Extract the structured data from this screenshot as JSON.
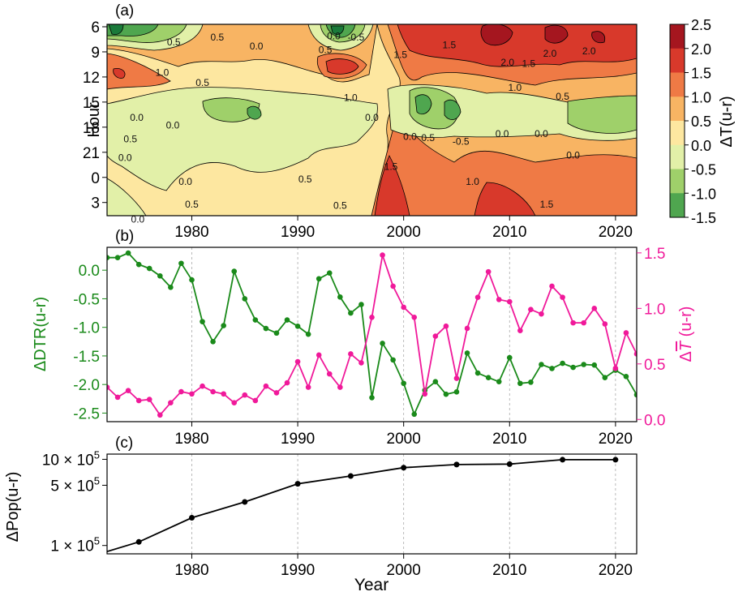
{
  "figure": {
    "panel_a_label": "(a)",
    "panel_b_label": "(b)",
    "panel_c_label": "(c)"
  },
  "chart_data": [
    {
      "type": "heatmap",
      "panel": "(a)",
      "ylabel": "Hour",
      "xlabel": "",
      "x_ticks": [
        "1980",
        "1990",
        "2000",
        "2010",
        "2020"
      ],
      "x_tick_values": [
        1980,
        1990,
        2000,
        2010,
        2020
      ],
      "xlim": [
        1972,
        2022
      ],
      "y_ticks": [
        "6",
        "9",
        "12",
        "15",
        "18",
        "21",
        "0",
        "3"
      ],
      "colorbar_label": "ΔT(u-r)",
      "colorbar_ticks": [
        "2.5",
        "2.0",
        "1.5",
        "1.0",
        "0.5",
        "0.0",
        "-0.5",
        "-1.0",
        "-1.5"
      ],
      "levels": [
        -1.5,
        -1.0,
        -0.5,
        0.0,
        0.5,
        1.0,
        1.5,
        2.0,
        2.5
      ],
      "level_colors": [
        "#1a7a3a",
        "#4fa64f",
        "#9fd06a",
        "#e2f0a8",
        "#fde7a0",
        "#f8b463",
        "#ef7a45",
        "#d8392b",
        "#a5161f"
      ],
      "contour_labels": [
        {
          "text": "0.5",
          "year": 1978.3,
          "hour_index": 0.75
        },
        {
          "text": "0.5",
          "year": 1982.4,
          "hour_index": 0.55
        },
        {
          "text": "0.0",
          "year": 1986.1,
          "hour_index": 0.9
        },
        {
          "text": "0.5",
          "year": 1992.6,
          "hour_index": 1.05
        },
        {
          "text": "0.0",
          "year": 1993.4,
          "hour_index": 0.5
        },
        {
          "text": "-0.5",
          "year": 1995.5,
          "hour_index": 0.55
        },
        {
          "text": "1.0",
          "year": 1977.2,
          "hour_index": 1.95
        },
        {
          "text": "0.5",
          "year": 1981.0,
          "hour_index": 2.35
        },
        {
          "text": "1.0",
          "year": 1995.0,
          "hour_index": 2.95
        },
        {
          "text": "1.5",
          "year": 1999.7,
          "hour_index": 1.25
        },
        {
          "text": "1.5",
          "year": 2004.3,
          "hour_index": 0.85
        },
        {
          "text": "2.0",
          "year": 2009.8,
          "hour_index": 1.55
        },
        {
          "text": "1.5",
          "year": 2011.8,
          "hour_index": 1.6
        },
        {
          "text": "2.0",
          "year": 2013.8,
          "hour_index": 1.2
        },
        {
          "text": "2.0",
          "year": 2017.5,
          "hour_index": 1.1
        },
        {
          "text": "1.0",
          "year": 2010.5,
          "hour_index": 2.55
        },
        {
          "text": "0.5",
          "year": 2015.0,
          "hour_index": 2.9
        },
        {
          "text": "0.0",
          "year": 1974.8,
          "hour_index": 3.75
        },
        {
          "text": "0.0",
          "year": 1978.2,
          "hour_index": 4.05
        },
        {
          "text": "0.0",
          "year": 1997.0,
          "hour_index": 3.75
        },
        {
          "text": "0.0",
          "year": 2000.6,
          "hour_index": 4.5
        },
        {
          "text": "0.5",
          "year": 2002.3,
          "hour_index": 4.55
        },
        {
          "text": "-0.5",
          "year": 2005.4,
          "hour_index": 4.7
        },
        {
          "text": "0.0",
          "year": 2009.3,
          "hour_index": 4.4
        },
        {
          "text": "0.0",
          "year": 2013.0,
          "hour_index": 4.4
        },
        {
          "text": "0.0",
          "year": 2016.0,
          "hour_index": 5.25
        },
        {
          "text": "0.5",
          "year": 1974.2,
          "hour_index": 4.6
        },
        {
          "text": "0.0",
          "year": 1973.7,
          "hour_index": 5.35
        },
        {
          "text": "0.0",
          "year": 1979.4,
          "hour_index": 6.3
        },
        {
          "text": "0.5",
          "year": 1990.7,
          "hour_index": 6.2
        },
        {
          "text": "1.5",
          "year": 1998.8,
          "hour_index": 5.7
        },
        {
          "text": "1.0",
          "year": 2006.5,
          "hour_index": 6.3
        },
        {
          "text": "1.5",
          "year": 2013.5,
          "hour_index": 7.2
        },
        {
          "text": "0.5",
          "year": 1980.0,
          "hour_index": 7.2
        },
        {
          "text": "0.5",
          "year": 1994.0,
          "hour_index": 7.25
        },
        {
          "text": "0.0",
          "year": 1974.9,
          "hour_index": 7.8
        }
      ]
    },
    {
      "type": "line",
      "panel": "(b)",
      "xlim": [
        1972,
        2022
      ],
      "x_ticks": [
        "1980",
        "1990",
        "2000",
        "2010",
        "2020"
      ],
      "x_tick_values": [
        1980,
        1990,
        2000,
        2010,
        2020
      ],
      "ylabel_left": "ΔDTR(u-r)",
      "ylabel_right_prefix": "Δ",
      "ylabel_right_symbol": "T",
      "ylabel_right_suffix": " (u-r)",
      "ylim_left": [
        -2.65,
        0.4
      ],
      "ylim_right": [
        -0.02,
        1.55
      ],
      "yticks_left": [
        "0.0",
        "-0.5",
        "-1.0",
        "-1.5",
        "-2.0",
        "-2.5"
      ],
      "yticks_left_values": [
        0,
        -0.5,
        -1.0,
        -1.5,
        -2.0,
        -2.5
      ],
      "yticks_right": [
        "1.5",
        "1.0",
        "0.5",
        "0.0"
      ],
      "yticks_right_values": [
        1.5,
        1.0,
        0.5,
        0.0
      ],
      "x": [
        1972,
        1973,
        1974,
        1975,
        1976,
        1977,
        1978,
        1979,
        1980,
        1981,
        1982,
        1983,
        1984,
        1985,
        1986,
        1987,
        1988,
        1989,
        1990,
        1991,
        1992,
        1993,
        1994,
        1995,
        1996,
        1997,
        1998,
        1999,
        2000,
        2001,
        2002,
        2003,
        2004,
        2005,
        2006,
        2007,
        2008,
        2009,
        2010,
        2011,
        2012,
        2013,
        2014,
        2015,
        2016,
        2017,
        2018,
        2019,
        2020,
        2021,
        2022
      ],
      "series": [
        {
          "name": "ΔDTR(u-r)",
          "axis": "left",
          "color": "#1a8a1a",
          "values": [
            0.22,
            0.22,
            0.3,
            0.1,
            0.03,
            -0.1,
            -0.3,
            0.12,
            -0.17,
            -0.9,
            -1.25,
            -0.97,
            -0.02,
            -0.5,
            -0.87,
            -1.02,
            -1.1,
            -0.87,
            -0.98,
            -1.12,
            -0.15,
            -0.05,
            -0.47,
            -0.75,
            -0.6,
            -2.23,
            -1.28,
            -1.57,
            -1.98,
            -2.52,
            -2.1,
            -1.95,
            -2.17,
            -2.13,
            -1.45,
            -1.8,
            -1.88,
            -1.95,
            -1.53,
            -1.98,
            -1.96,
            -1.65,
            -1.72,
            -1.63,
            -1.7,
            -1.65,
            -1.66,
            -1.88,
            -1.75,
            -1.86,
            -2.18
          ]
        },
        {
          "name": "ΔT̄ (u-r)",
          "axis": "right",
          "color": "#f0199a",
          "values": [
            0.29,
            0.2,
            0.26,
            0.17,
            0.18,
            0.04,
            0.15,
            0.25,
            0.23,
            0.3,
            0.25,
            0.23,
            0.15,
            0.22,
            0.17,
            0.3,
            0.24,
            0.33,
            0.52,
            0.29,
            0.58,
            0.41,
            0.29,
            0.59,
            0.51,
            0.92,
            1.48,
            1.2,
            1.01,
            0.92,
            0.23,
            0.75,
            0.84,
            0.37,
            0.82,
            1.1,
            1.33,
            1.08,
            1.06,
            0.8,
            0.99,
            0.95,
            1.2,
            1.1,
            0.87,
            0.87,
            1.0,
            0.86,
            0.46,
            0.78,
            0.59
          ]
        }
      ]
    },
    {
      "type": "line",
      "panel": "(c)",
      "scale": "log",
      "xlim": [
        1972,
        2022
      ],
      "ylim": [
        80000,
        1150000
      ],
      "xlabel": "Year",
      "ylabel": "ΔPop(u-r)",
      "x_ticks": [
        "1980",
        "1990",
        "2000",
        "2010",
        "2020"
      ],
      "x_tick_values": [
        1980,
        1990,
        2000,
        2010,
        2020
      ],
      "y_ticks": [
        {
          "mantissa": "10 × 10",
          "exponent": "5",
          "value": 1000000
        },
        {
          "mantissa": "5 × 10",
          "exponent": "5",
          "value": 500000
        },
        {
          "mantissa": "1 × 10",
          "exponent": "5",
          "value": 100000
        }
      ],
      "x": [
        1972,
        1975,
        1980,
        1985,
        1990,
        1995,
        2000,
        2005,
        2010,
        2015,
        2020
      ],
      "values": [
        85000,
        110000,
        210000,
        320000,
        520000,
        640000,
        800000,
        870000,
        880000,
        990000,
        990000
      ],
      "markers_from_index": 1,
      "color": "#000000"
    }
  ]
}
